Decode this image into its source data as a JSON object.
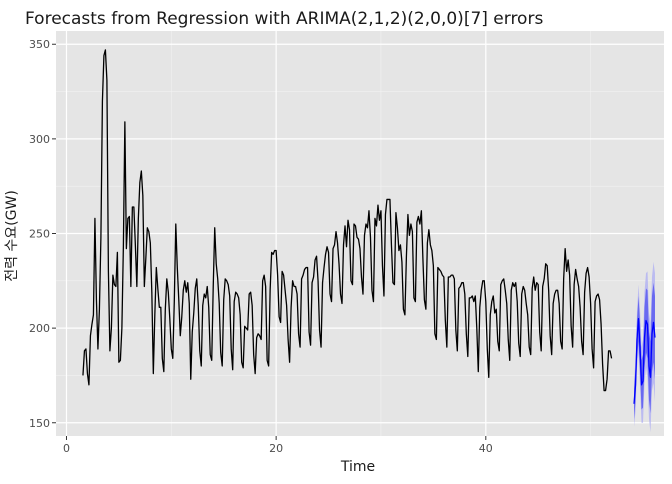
{
  "chart_data": {
    "type": "line",
    "title": "Forecasts from Regression with ARIMA(2,1,2)(2,0,0)[7] errors",
    "xlabel": "Time",
    "ylabel": "전력 수요(GW)",
    "xlim": [
      -1,
      57
    ],
    "ylim": [
      143,
      357
    ],
    "x_ticks": [
      0,
      20,
      40
    ],
    "y_ticks": [
      150,
      200,
      250,
      300,
      350
    ],
    "x_tick_labels": [
      "0",
      "20",
      "40"
    ],
    "y_tick_labels": [
      "150",
      "200",
      "250",
      "300",
      "350"
    ],
    "grid": true,
    "legend": "none",
    "series": [
      {
        "role": "history",
        "color": "#000000",
        "x_start": 1.57,
        "x_step": 0.1428571,
        "values": [
          175,
          188,
          189,
          176,
          170,
          196,
          202,
          207,
          258,
          215,
          189,
          210,
          248,
          320,
          344,
          347,
          331,
          230,
          188,
          200,
          228,
          223,
          222,
          240,
          182,
          183,
          200,
          243,
          309,
          242,
          258,
          259,
          222,
          264,
          264,
          244,
          222,
          258,
          277,
          283,
          270,
          222,
          237,
          253,
          251,
          245,
          219,
          176,
          207,
          232,
          221,
          211,
          211,
          184,
          177,
          210,
          226,
          219,
          205,
          189,
          184,
          214,
          255,
          232,
          215,
          196,
          206,
          220,
          225,
          219,
          224,
          213,
          173,
          198,
          208,
          221,
          226,
          212,
          188,
          180,
          212,
          218,
          216,
          222,
          211,
          186,
          183,
          222,
          253,
          234,
          226,
          213,
          187,
          180,
          215,
          226,
          225,
          223,
          217,
          189,
          178,
          214,
          219,
          218,
          216,
          207,
          182,
          179,
          201,
          200,
          199,
          218,
          219,
          212,
          186,
          176,
          195,
          197,
          196,
          194,
          225,
          228,
          222,
          183,
          180,
          220,
          240,
          239,
          241,
          241,
          228,
          206,
          203,
          230,
          228,
          220,
          212,
          194,
          182,
          211,
          225,
          222,
          222,
          218,
          197,
          190,
          226,
          228,
          231,
          232,
          232,
          198,
          191,
          224,
          227,
          236,
          238,
          225,
          199,
          190,
          224,
          232,
          239,
          243,
          240,
          218,
          214,
          242,
          244,
          251,
          245,
          234,
          218,
          213,
          244,
          254,
          243,
          257,
          252,
          225,
          223,
          255,
          254,
          248,
          247,
          242,
          227,
          218,
          249,
          255,
          253,
          262,
          248,
          220,
          214,
          258,
          254,
          265,
          257,
          262,
          233,
          217,
          260,
          268,
          268,
          268,
          244,
          224,
          223,
          261,
          253,
          241,
          244,
          235,
          210,
          207,
          238,
          260,
          249,
          255,
          251,
          216,
          214,
          256,
          259,
          255,
          262,
          237,
          215,
          210,
          245,
          252,
          244,
          241,
          233,
          197,
          194,
          232,
          231,
          230,
          228,
          227,
          204,
          190,
          227,
          227,
          228,
          228,
          226,
          199,
          188,
          221,
          222,
          224,
          224,
          218,
          197,
          185,
          216,
          216,
          217,
          214,
          217,
          200,
          177,
          211,
          220,
          225,
          225,
          214,
          189,
          174,
          207,
          214,
          217,
          208,
          210,
          193,
          188,
          223,
          225,
          226,
          220,
          213,
          194,
          183,
          220,
          224,
          222,
          224,
          214,
          192,
          185,
          218,
          222,
          220,
          213,
          207,
          190,
          186,
          221,
          227,
          220,
          224,
          223,
          198,
          188,
          222,
          226,
          234,
          233,
          220,
          196,
          186,
          213,
          218,
          220,
          220,
          213,
          193,
          189,
          226,
          242,
          230,
          236,
          228,
          201,
          190,
          223,
          231,
          226,
          222,
          211,
          193,
          186,
          219,
          229,
          232,
          227,
          213,
          189,
          179,
          214,
          217,
          218,
          215,
          202,
          181,
          167,
          167,
          173,
          188,
          188,
          184
        ]
      },
      {
        "role": "forecast-mean",
        "color": "#0000ff",
        "x_start": 54.14,
        "x_step": 0.1428571,
        "values": [
          160,
          170,
          194,
          205,
          190,
          170,
          172,
          195,
          204,
          202,
          180,
          174,
          197,
          203,
          195
        ]
      },
      {
        "role": "forecast-interval-80",
        "color": "#5a5af0",
        "lower": [
          152,
          161,
          184,
          193,
          177,
          157,
          158,
          179,
          187,
          184,
          162,
          155,
          177,
          182,
          173
        ],
        "upper": [
          168,
          179,
          204,
          217,
          203,
          183,
          186,
          211,
          221,
          220,
          198,
          193,
          217,
          224,
          217
        ]
      },
      {
        "role": "forecast-interval-95",
        "color": "#b4b4f2",
        "lower": [
          148,
          156,
          179,
          187,
          170,
          150,
          150,
          171,
          179,
          174,
          152,
          145,
          167,
          171,
          161
        ],
        "upper": [
          172,
          184,
          209,
          223,
          210,
          190,
          194,
          219,
          229,
          230,
          208,
          203,
          227,
          235,
          229
        ]
      }
    ]
  }
}
